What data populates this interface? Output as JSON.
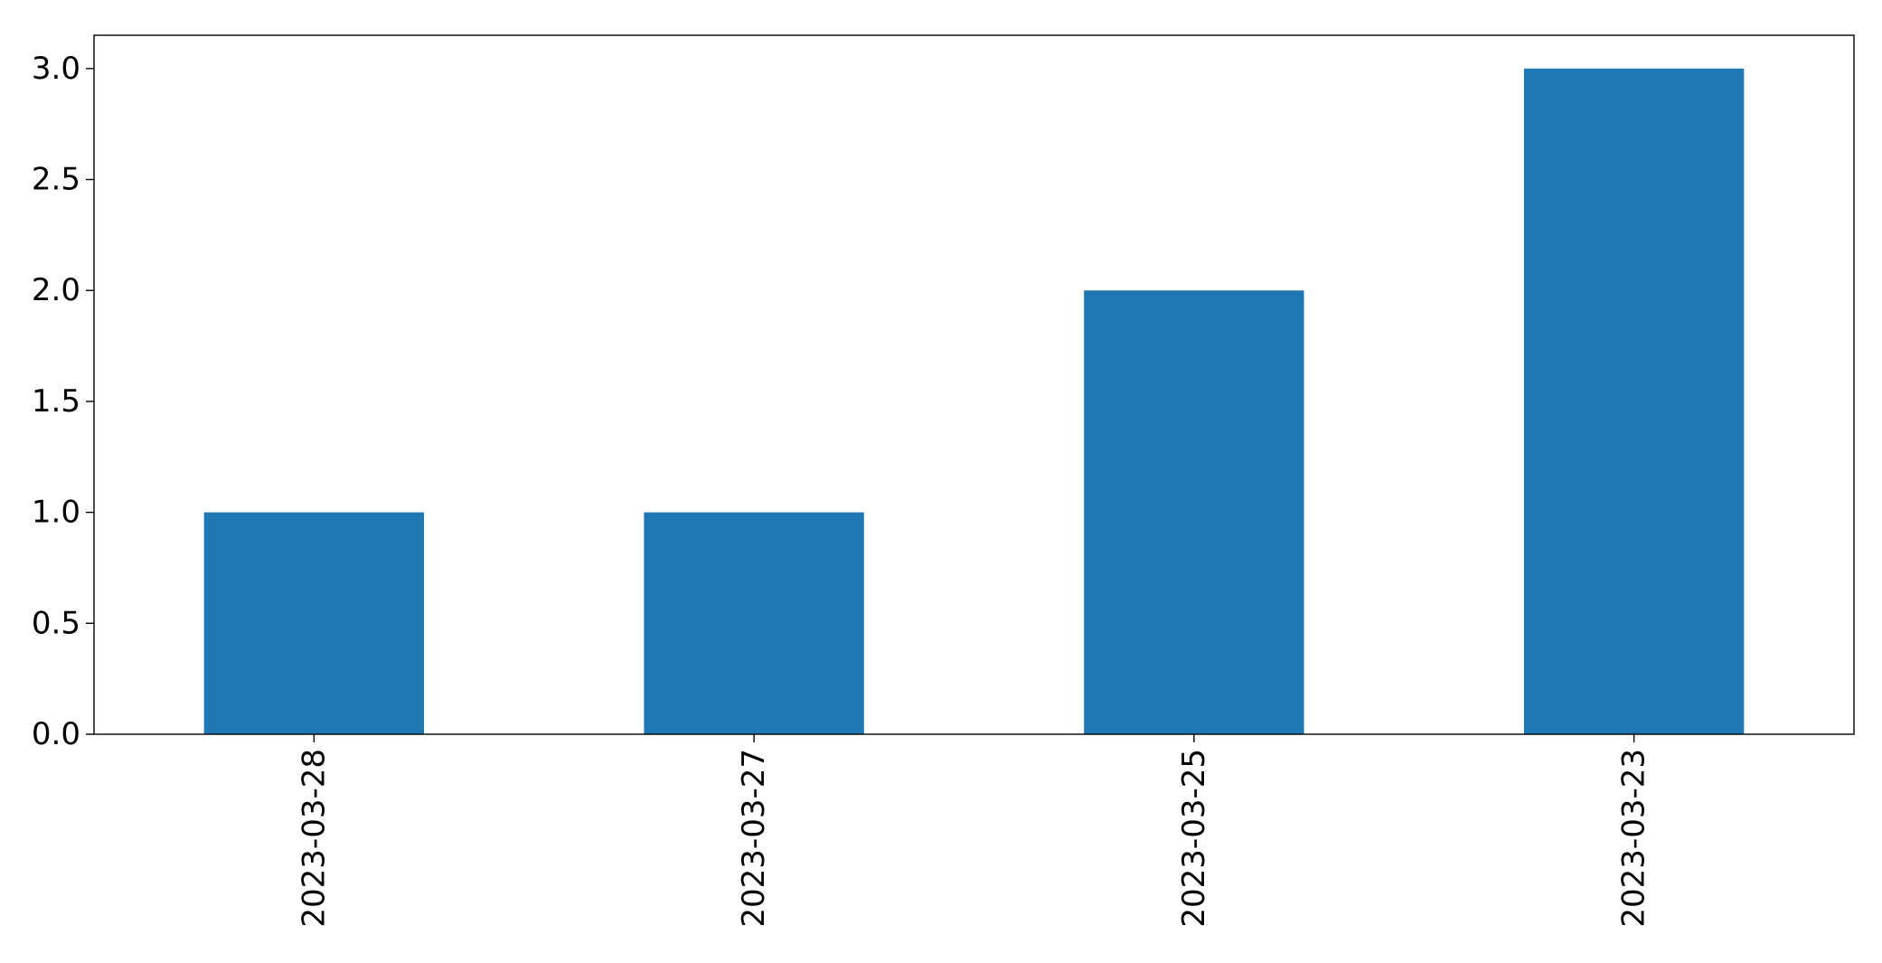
{
  "chart_data": {
    "type": "bar",
    "title": "",
    "xlabel": "",
    "ylabel": "",
    "categories": [
      "2023-03-28",
      "2023-03-27",
      "2023-03-25",
      "2023-03-23"
    ],
    "values": [
      1,
      1,
      2,
      3
    ],
    "ylim": [
      0,
      3.15
    ],
    "yticks": [
      0.0,
      0.5,
      1.0,
      1.5,
      2.0,
      2.5,
      3.0
    ],
    "ytick_labels": [
      "0.0",
      "0.5",
      "1.0",
      "1.5",
      "2.0",
      "2.5",
      "3.0"
    ],
    "grid": false,
    "legend": "none",
    "bar_color": "#1f77b4"
  }
}
